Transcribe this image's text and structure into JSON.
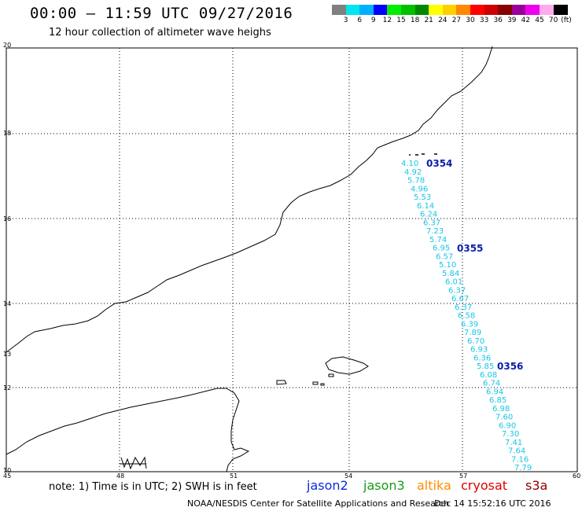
{
  "header": {
    "title": "00:00 – 11:59 UTC 09/27/2016",
    "subtitle": "12 hour collection of altimeter wave heighs"
  },
  "legend": {
    "colors": [
      "#808080",
      "#00e5ee",
      "#00b0ff",
      "#0000ff",
      "#00ee00",
      "#00c000",
      "#008800",
      "#ffff00",
      "#ffd000",
      "#ff8800",
      "#ff0000",
      "#cc0000",
      "#880000",
      "#990099",
      "#ee00ee",
      "#ffaaee",
      "#000000"
    ],
    "ticks": [
      "3",
      "6",
      "9",
      "12",
      "15",
      "18",
      "21",
      "24",
      "27",
      "30",
      "33",
      "36",
      "39",
      "42",
      "45",
      "70"
    ],
    "unit": "(ft)"
  },
  "axes": {
    "lat_labels": [
      "20",
      "18",
      "16",
      "14",
      "12",
      "10"
    ],
    "lon_labels": [
      "45",
      "48",
      "51",
      "54",
      "57",
      "60"
    ],
    "side_label": "13"
  },
  "track": {
    "color": "#19c6e8",
    "swh": [
      "4.10",
      "4.92",
      "5.78",
      "4.96",
      "5.53",
      "6.14",
      "6.24",
      "6.37",
      "7.23",
      "5.74",
      "6.95",
      "6.57",
      "5.10",
      "5.84",
      "6.01",
      "6.37",
      "6.67",
      "6.37",
      "6.58",
      "6.39",
      "7.89",
      "6.70",
      "6.93",
      "6.36",
      "5.85",
      "6.08",
      "6.74",
      "6.94",
      "6.85",
      "6.98",
      "7.60",
      "6.90",
      "7.30",
      "7.41",
      "7.64",
      "7.16",
      "7.79"
    ],
    "time_labels": [
      "0354",
      "0355",
      "0356"
    ]
  },
  "footer": {
    "note": "note: 1) Time is in UTC; 2) SWH is in feet",
    "satellites": [
      {
        "name": "jason2",
        "color": "#0a2adf"
      },
      {
        "name": "jason3",
        "color": "#1a9a1a"
      },
      {
        "name": "altika",
        "color": "#ff8c00"
      },
      {
        "name": "cryosat",
        "color": "#e00000"
      },
      {
        "name": "s3a",
        "color": "#8b0000"
      }
    ],
    "credit": "NOAA/NESDIS Center for Satellite Applications and Research",
    "timestamp": "Dec 14 15:52:16 UTC 2016"
  }
}
